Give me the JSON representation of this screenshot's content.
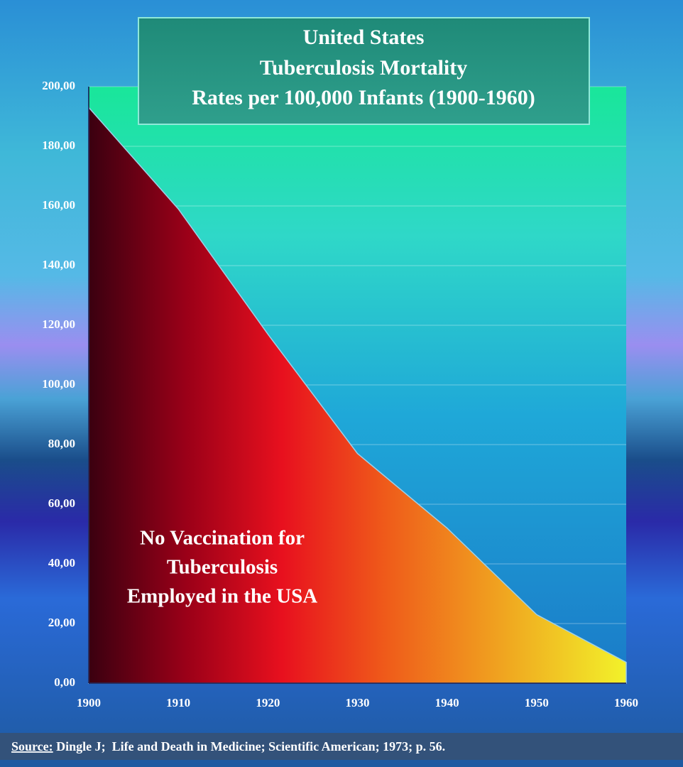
{
  "chart_data": {
    "type": "area",
    "title": [
      "United States",
      "Tuberculosis Mortality",
      "Rates per 100,000 Infants (1900-1960)"
    ],
    "x": [
      1900,
      1910,
      1920,
      1930,
      1940,
      1950,
      1960
    ],
    "values": [
      193,
      159,
      117,
      77,
      52,
      23,
      7
    ],
    "xlim": [
      1900,
      1960
    ],
    "xticks": [
      1900,
      1910,
      1920,
      1930,
      1940,
      1950,
      1960
    ],
    "ylim": [
      0,
      200
    ],
    "yticks": [
      {
        "value": 0,
        "label": "0,00"
      },
      {
        "value": 20,
        "label": "20,00"
      },
      {
        "value": 40,
        "label": "40,00"
      },
      {
        "value": 60,
        "label": "60,00"
      },
      {
        "value": 80,
        "label": "80,00"
      },
      {
        "value": 100,
        "label": "100,00"
      },
      {
        "value": 120,
        "label": "120,00"
      },
      {
        "value": 140,
        "label": "140,00"
      },
      {
        "value": 160,
        "label": "160,00"
      },
      {
        "value": 180,
        "label": "180,00"
      },
      {
        "value": 200,
        "label": "200,00"
      }
    ],
    "grid": true,
    "annotation": [
      "No Vaccination for",
      "Tuberculosis",
      "Employed in the USA"
    ],
    "source_label": "Source:",
    "source_text": " Dingle J;  Life and Death in Medicine; Scientific American; 1973; p. 56."
  }
}
